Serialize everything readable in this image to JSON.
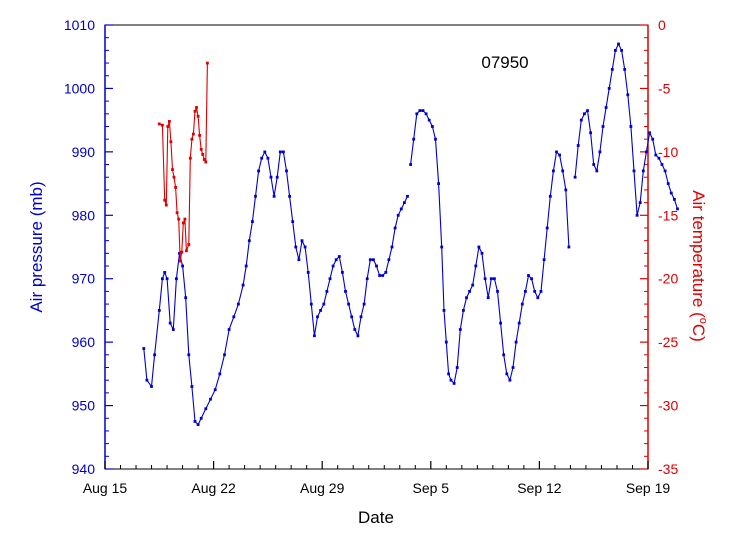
{
  "chart_data": {
    "type": "line",
    "annotation": "07950",
    "xlabel": "Date",
    "x_ticks": [
      "Aug 15",
      "Aug 22",
      "Aug 29",
      "Sep 5",
      "Sep 12",
      "Sep 19"
    ],
    "x_range_days": [
      0,
      35
    ],
    "left_axis": {
      "label": "Air pressure (mb)",
      "range": [
        940,
        1010
      ],
      "ticks": [
        940,
        950,
        960,
        970,
        980,
        990,
        1000,
        1010
      ],
      "color": "#0000cc"
    },
    "right_axis": {
      "label_text": "Air temperature (",
      "label_super": "o",
      "label_end": "C)",
      "range": [
        -35,
        0
      ],
      "ticks": [
        -35,
        -30,
        -25,
        -20,
        -15,
        -10,
        -5,
        0
      ],
      "color": "#dd0000"
    },
    "grid": false,
    "series": [
      {
        "axis": "left",
        "color": "#0000cc",
        "points": [
          [
            2.5,
            959
          ],
          [
            2.7,
            954
          ],
          [
            3.0,
            953
          ],
          [
            3.2,
            958
          ],
          [
            3.5,
            965
          ],
          [
            3.7,
            970
          ],
          [
            3.85,
            971
          ],
          [
            4.0,
            970
          ],
          [
            4.2,
            963
          ],
          [
            4.4,
            962
          ],
          [
            4.6,
            970
          ],
          [
            4.8,
            974
          ],
          [
            5.0,
            972
          ],
          [
            5.2,
            967
          ],
          [
            5.4,
            958
          ],
          [
            5.6,
            953
          ],
          [
            5.8,
            947.5
          ],
          [
            6.0,
            947
          ],
          [
            6.2,
            948
          ],
          [
            6.5,
            949.5
          ],
          [
            6.8,
            951
          ],
          [
            7.1,
            952.5
          ],
          [
            7.4,
            955
          ],
          [
            7.7,
            958
          ],
          [
            8.0,
            962
          ],
          [
            8.3,
            964
          ],
          [
            8.6,
            966
          ],
          [
            8.9,
            969
          ],
          [
            9.1,
            972
          ],
          [
            9.3,
            976
          ],
          [
            9.5,
            979
          ],
          [
            9.7,
            983
          ],
          [
            9.9,
            987
          ],
          [
            10.1,
            989
          ],
          [
            10.3,
            990
          ],
          [
            10.5,
            989
          ],
          [
            10.7,
            986
          ],
          [
            10.9,
            983
          ],
          [
            11.1,
            986
          ],
          [
            11.3,
            990
          ],
          [
            11.5,
            990
          ],
          [
            11.7,
            987
          ],
          [
            11.9,
            983
          ],
          [
            12.1,
            979
          ],
          [
            12.3,
            975
          ],
          [
            12.5,
            973
          ],
          [
            12.7,
            976
          ],
          [
            12.9,
            975
          ],
          [
            13.1,
            971
          ],
          [
            13.3,
            966
          ],
          [
            13.5,
            961
          ],
          [
            13.7,
            964
          ],
          [
            13.9,
            965
          ],
          [
            14.1,
            966
          ],
          [
            14.3,
            968
          ],
          [
            14.5,
            970
          ],
          [
            14.7,
            972
          ],
          [
            14.9,
            973
          ],
          [
            15.1,
            973.5
          ],
          [
            15.3,
            971
          ],
          [
            15.5,
            968
          ],
          [
            15.7,
            966
          ],
          [
            15.9,
            964
          ],
          [
            16.1,
            962
          ],
          [
            16.3,
            961
          ],
          [
            16.5,
            964
          ],
          [
            16.7,
            966
          ],
          [
            16.9,
            970
          ],
          [
            17.1,
            973
          ],
          [
            17.3,
            973
          ],
          [
            17.5,
            972
          ],
          [
            17.7,
            970.5
          ],
          [
            17.9,
            970.5
          ],
          [
            18.1,
            971
          ],
          [
            18.3,
            973
          ],
          [
            18.5,
            975
          ],
          [
            18.7,
            978
          ],
          [
            18.9,
            980
          ],
          [
            19.1,
            981
          ],
          [
            19.3,
            982
          ],
          [
            19.5,
            983
          ],
          null,
          [
            19.7,
            988
          ],
          [
            19.9,
            992
          ],
          [
            20.1,
            996
          ],
          [
            20.3,
            996.5
          ],
          [
            20.5,
            996.5
          ],
          [
            20.7,
            996
          ],
          [
            20.9,
            995
          ],
          [
            21.1,
            994
          ],
          [
            21.3,
            992
          ],
          [
            21.5,
            985
          ],
          [
            21.7,
            975
          ],
          [
            21.85,
            965
          ],
          [
            22.0,
            960
          ],
          [
            22.15,
            955
          ],
          [
            22.3,
            954
          ],
          [
            22.5,
            953.5
          ],
          [
            22.7,
            956
          ],
          [
            22.9,
            962
          ],
          [
            23.1,
            965
          ],
          [
            23.3,
            967
          ],
          [
            23.5,
            968
          ],
          [
            23.7,
            969
          ],
          [
            23.9,
            972
          ],
          [
            24.1,
            975
          ],
          [
            24.3,
            974
          ],
          [
            24.5,
            970
          ],
          [
            24.7,
            967
          ],
          [
            24.9,
            970
          ],
          [
            25.1,
            970
          ],
          [
            25.3,
            968
          ],
          [
            25.5,
            963
          ],
          [
            25.7,
            958
          ],
          [
            25.9,
            955
          ],
          [
            26.1,
            954
          ],
          [
            26.3,
            956
          ],
          [
            26.5,
            960
          ],
          [
            26.7,
            963
          ],
          [
            26.9,
            966
          ],
          [
            27.1,
            968
          ],
          [
            27.3,
            970.5
          ],
          [
            27.5,
            970
          ],
          [
            27.7,
            968
          ],
          [
            27.9,
            967
          ],
          [
            28.1,
            968
          ],
          [
            28.3,
            973
          ],
          [
            28.5,
            978
          ],
          [
            28.7,
            983
          ],
          [
            28.9,
            987
          ],
          [
            29.1,
            990
          ],
          [
            29.3,
            989.5
          ],
          [
            29.5,
            987
          ],
          [
            29.7,
            984
          ],
          [
            29.9,
            975
          ],
          null,
          [
            30.3,
            986
          ],
          [
            30.5,
            991
          ],
          [
            30.7,
            995
          ],
          [
            30.9,
            996
          ],
          [
            31.1,
            996.5
          ],
          [
            31.3,
            993
          ],
          [
            31.5,
            988
          ],
          [
            31.7,
            987
          ],
          [
            31.9,
            990
          ],
          [
            32.1,
            994
          ],
          [
            32.3,
            997
          ],
          [
            32.5,
            1000
          ],
          [
            32.7,
            1003
          ],
          [
            32.9,
            1006
          ],
          [
            33.1,
            1007
          ],
          [
            33.3,
            1006
          ],
          [
            33.5,
            1003
          ],
          [
            33.7,
            999
          ],
          [
            33.9,
            994
          ],
          [
            34.1,
            987
          ],
          [
            34.3,
            980
          ],
          [
            34.5,
            982
          ],
          [
            34.7,
            987
          ],
          [
            34.9,
            990
          ],
          [
            35.1,
            993
          ],
          [
            35.3,
            992
          ],
          [
            35.5,
            989.5
          ],
          [
            35.7,
            989
          ],
          [
            35.9,
            988
          ],
          [
            36.1,
            987
          ],
          [
            36.3,
            985
          ],
          [
            36.5,
            983.5
          ],
          [
            36.7,
            982.5
          ],
          [
            36.9,
            981
          ]
        ]
      },
      {
        "axis": "right",
        "color": "#dd0000",
        "points": [
          [
            3.5,
            -7.8
          ],
          [
            3.7,
            -7.9
          ],
          [
            3.85,
            -13.8
          ],
          [
            3.95,
            -14.2
          ],
          [
            4.05,
            -8.0
          ],
          [
            4.15,
            -7.6
          ],
          [
            4.25,
            -9.2
          ],
          [
            4.35,
            -11.4
          ],
          [
            4.45,
            -12.0
          ],
          [
            4.55,
            -12.8
          ],
          [
            4.65,
            -14.8
          ],
          [
            4.75,
            -15.3
          ],
          [
            4.85,
            -18.6
          ],
          [
            4.95,
            -17.9
          ],
          [
            5.05,
            -15.6
          ],
          [
            5.15,
            -15.3
          ],
          [
            5.25,
            -17.8
          ],
          [
            5.4,
            -17.3
          ],
          [
            5.5,
            -10.5
          ],
          [
            5.6,
            -9.0
          ],
          [
            5.7,
            -8.6
          ],
          [
            5.8,
            -6.8
          ],
          [
            5.9,
            -6.5
          ],
          [
            6.0,
            -7.2
          ],
          [
            6.1,
            -8.7
          ],
          [
            6.2,
            -9.8
          ],
          [
            6.3,
            -10.2
          ],
          [
            6.4,
            -10.6
          ],
          [
            6.5,
            -10.8
          ],
          [
            6.6,
            -3.0
          ]
        ]
      }
    ]
  }
}
